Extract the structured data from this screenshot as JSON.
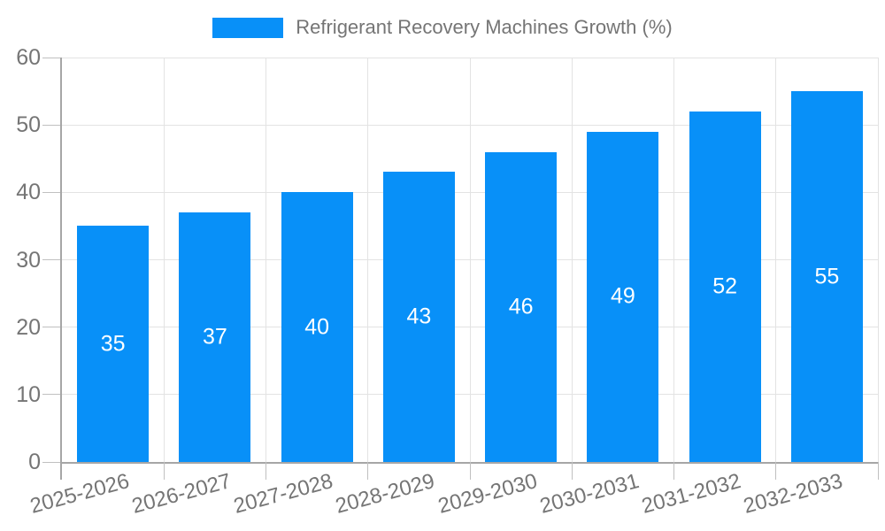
{
  "legend": {
    "label": "Refrigerant Recovery Machines Growth (%)"
  },
  "colors": {
    "bar": "#0890F8",
    "grid": "#e3e3e3",
    "axis": "#a6a6a6",
    "tick": "#c0c0c0",
    "label_text": "#757575",
    "value_text": "#ffffff",
    "background": "#ffffff"
  },
  "chart_data": {
    "type": "bar",
    "title": "Refrigerant Recovery Machines Growth (%)",
    "categories": [
      "2025-2026",
      "2026-2027",
      "2027-2028",
      "2028-2029",
      "2029-2030",
      "2030-2031",
      "2031-2032",
      "2032-2033"
    ],
    "values": [
      35,
      37,
      40,
      43,
      46,
      49,
      52,
      55
    ],
    "value_labels": [
      "35",
      "37",
      "40",
      "43",
      "46",
      "49",
      "52",
      "55"
    ],
    "xlabel": "",
    "ylabel": "",
    "ylim": [
      0,
      60
    ],
    "yticks": [
      0,
      10,
      20,
      30,
      40,
      50,
      60
    ],
    "grid": true,
    "legend_entries": [
      "Refrigerant Recovery Machines Growth (%)"
    ],
    "legend_position": "top-center",
    "bar_value_label_position": "inside-middle",
    "x_tick_rotation_deg": -15
  }
}
